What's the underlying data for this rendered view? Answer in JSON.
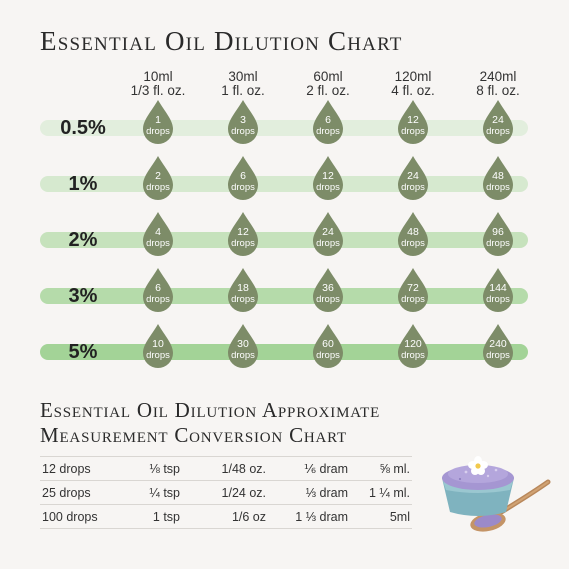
{
  "title": "Essential Oil Dilution Chart",
  "columns": [
    {
      "ml": "10ml",
      "oz": "1/3 fl. oz."
    },
    {
      "ml": "30ml",
      "oz": "1 fl. oz."
    },
    {
      "ml": "60ml",
      "oz": "2 fl. oz."
    },
    {
      "ml": "120ml",
      "oz": "4 fl. oz."
    },
    {
      "ml": "240ml",
      "oz": "8 fl. oz."
    }
  ],
  "drop_unit": "drops",
  "rows": [
    {
      "percent": "0.5%",
      "drops": [
        "1",
        "3",
        "6",
        "12",
        "24"
      ],
      "bar_color": "#e2eedd"
    },
    {
      "percent": "1%",
      "drops": [
        "2",
        "6",
        "12",
        "24",
        "48"
      ],
      "bar_color": "#d6e9cf"
    },
    {
      "percent": "2%",
      "drops": [
        "4",
        "12",
        "24",
        "48",
        "96"
      ],
      "bar_color": "#c6e2bc"
    },
    {
      "percent": "3%",
      "drops": [
        "6",
        "18",
        "36",
        "72",
        "144"
      ],
      "bar_color": "#b5dbaa"
    },
    {
      "percent": "5%",
      "drops": [
        "10",
        "30",
        "60",
        "120",
        "240"
      ],
      "bar_color": "#a3d397"
    }
  ],
  "subtitle_line1": "Essential Oil Dilution Approximate",
  "subtitle_line2": "Measurement Conversion Chart",
  "conversion": [
    [
      "12 drops",
      "⅛ tsp",
      "1/48 oz.",
      "⅙ dram",
      "⅝ ml."
    ],
    [
      "25 drops",
      "¼ tsp",
      "1/24 oz.",
      "⅓ dram",
      "1 ¼ ml."
    ],
    [
      "100 drops",
      "1 tsp",
      "1/6 oz",
      "1 ⅓ dram",
      "5ml"
    ]
  ],
  "colors": {
    "drop": "#7d8c68",
    "background": "#f7f5f3"
  },
  "illustration_icon": "lavender-bath-salt-bowl-with-spoon-icon"
}
